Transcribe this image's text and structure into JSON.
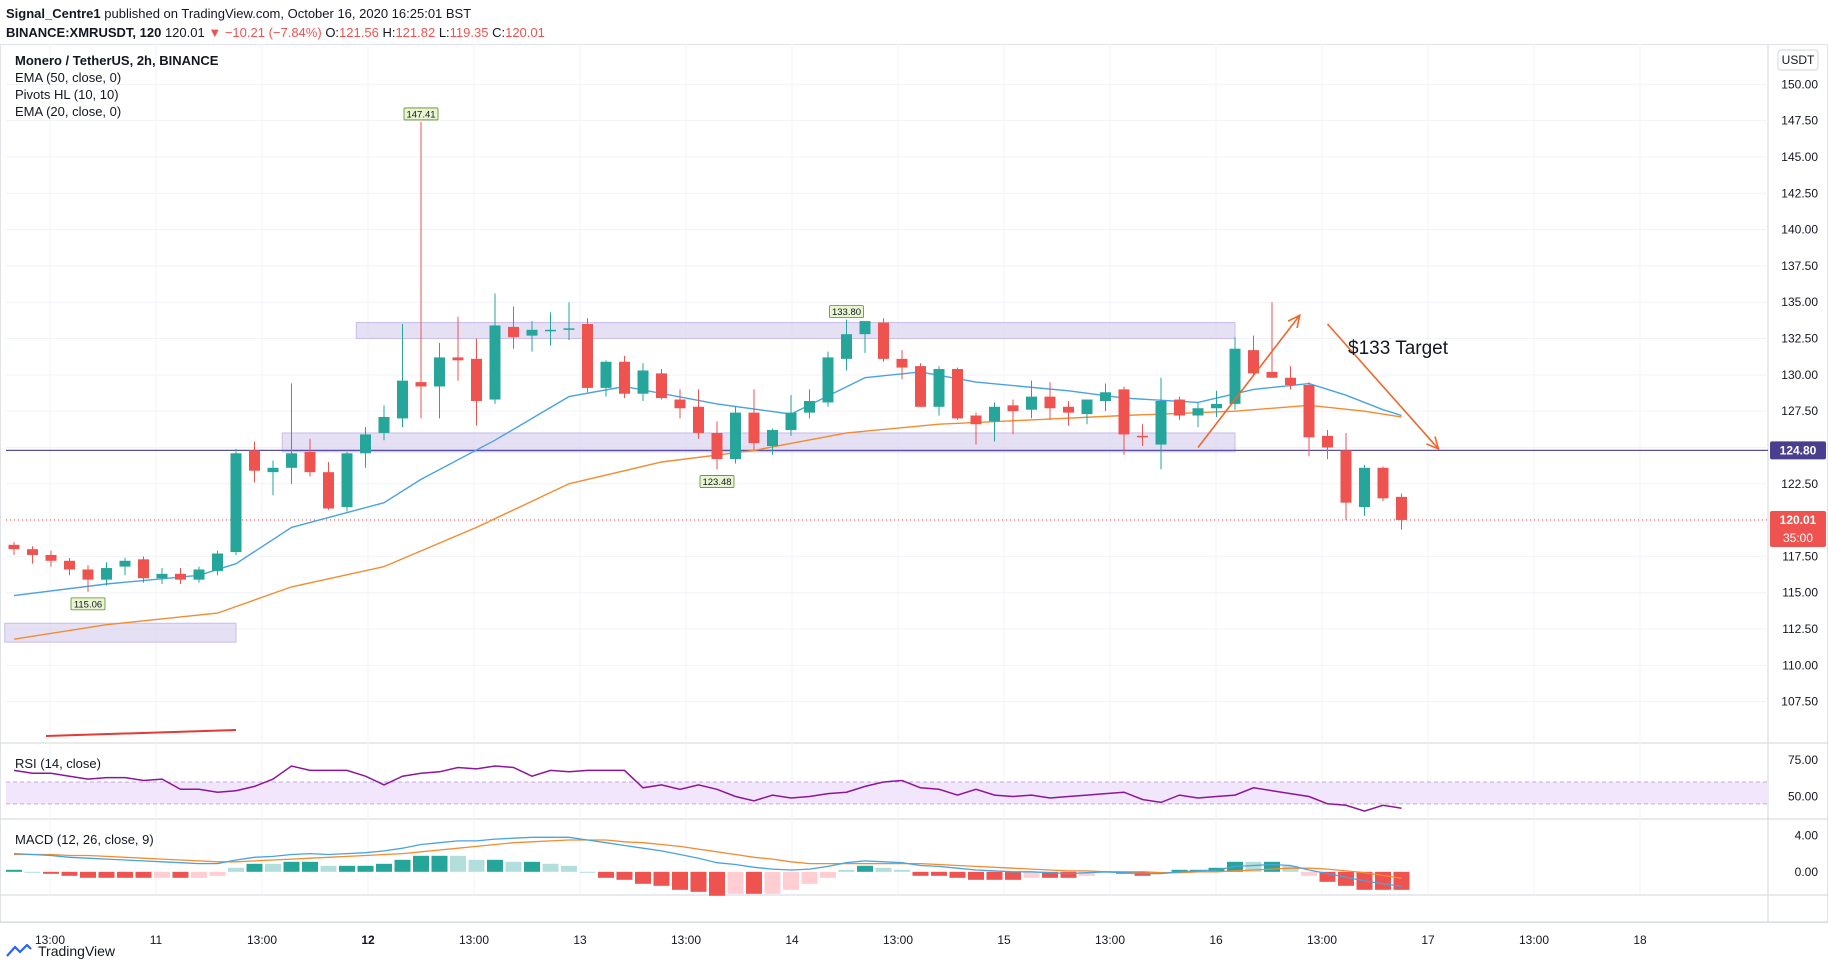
{
  "header": {
    "publisher": "Signal_Centre1",
    "published_text": "published on TradingView.com, October 16, 2020 16:25:01 BST",
    "symbol_line": "BINANCE:XMRUSDT, 120",
    "last": "120.01",
    "change": "−10.21 (−7.84%)",
    "open": "121.56",
    "high": "121.82",
    "low": "119.35",
    "close": "120.01"
  },
  "legend": {
    "title": "Monero / TetherUS, 2h, BINANCE",
    "indicators": [
      "EMA (50, close, 0)",
      "Pivots HL (10, 10)",
      "EMA (20, close, 0)"
    ]
  },
  "currency_badge": "USDT",
  "annotation": "$133 Target",
  "footer": {
    "brand": "TradingView"
  },
  "colors": {
    "up": "#26a69a",
    "down": "#ef5350",
    "ema20": "#4aa3df",
    "ema50": "#f28c30",
    "zone": "#d9d0f0",
    "rsi": "#8e1599",
    "level": "#5b4fa3"
  },
  "chart_data": {
    "type": "candlestick",
    "price_axis": {
      "min": 105,
      "max": 152.5,
      "ticks": [
        "150.00",
        "147.50",
        "145.00",
        "142.50",
        "140.00",
        "137.50",
        "135.00",
        "132.50",
        "130.00",
        "127.50",
        "125.00",
        "122.50",
        "120.00",
        "117.50",
        "115.00",
        "112.50",
        "110.00",
        "107.50"
      ]
    },
    "time_axis_labels": [
      "13:00",
      "11",
      "13:00",
      "12",
      "13:00",
      "13",
      "13:00",
      "14",
      "13:00",
      "15",
      "13:00",
      "16",
      "13:00",
      "17",
      "13:00",
      "18"
    ],
    "candles": [
      [
        118.3,
        118.5,
        117.6,
        118.0
      ],
      [
        118.0,
        118.2,
        117.0,
        117.6
      ],
      [
        117.6,
        117.9,
        116.8,
        117.2
      ],
      [
        117.2,
        117.4,
        116.2,
        116.6
      ],
      [
        116.6,
        116.9,
        115.06,
        115.9
      ],
      [
        115.9,
        117.1,
        115.5,
        116.7
      ],
      [
        116.8,
        117.4,
        116.2,
        117.2
      ],
      [
        117.3,
        117.5,
        115.7,
        116.0
      ],
      [
        116.0,
        116.7,
        115.6,
        116.3
      ],
      [
        116.3,
        116.7,
        115.6,
        115.9
      ],
      [
        115.9,
        116.8,
        115.7,
        116.6
      ],
      [
        116.5,
        117.9,
        116.2,
        117.7
      ],
      [
        117.8,
        124.9,
        117.6,
        124.6
      ],
      [
        124.8,
        125.4,
        122.6,
        123.4
      ],
      [
        123.3,
        124.1,
        121.7,
        123.6
      ],
      [
        123.6,
        129.4,
        122.5,
        124.6
      ],
      [
        124.7,
        125.6,
        123.0,
        123.3
      ],
      [
        123.3,
        124.0,
        120.7,
        120.8
      ],
      [
        120.9,
        124.7,
        120.6,
        124.6
      ],
      [
        124.6,
        126.4,
        123.6,
        125.9
      ],
      [
        126.0,
        127.9,
        125.5,
        127.1
      ],
      [
        127.0,
        133.5,
        126.4,
        129.6
      ],
      [
        129.5,
        147.41,
        127.0,
        129.2
      ],
      [
        129.2,
        132.2,
        127.0,
        131.2
      ],
      [
        131.2,
        134.0,
        129.6,
        131.0
      ],
      [
        131.1,
        132.5,
        126.5,
        128.2
      ],
      [
        128.3,
        135.6,
        128.0,
        133.4
      ],
      [
        133.3,
        134.7,
        131.8,
        132.6
      ],
      [
        132.7,
        133.7,
        131.6,
        133.1
      ],
      [
        133.1,
        134.3,
        132.0,
        133.1
      ],
      [
        133.1,
        135.0,
        132.4,
        133.2
      ],
      [
        133.5,
        133.9,
        128.8,
        129.1
      ],
      [
        129.1,
        131.0,
        128.5,
        130.9
      ],
      [
        130.9,
        131.3,
        128.4,
        128.7
      ],
      [
        128.7,
        130.8,
        128.2,
        130.3
      ],
      [
        130.1,
        130.4,
        128.3,
        128.4
      ],
      [
        128.3,
        129.0,
        127.0,
        127.7
      ],
      [
        127.8,
        129.0,
        125.6,
        126.0
      ],
      [
        126.0,
        126.8,
        123.48,
        124.2
      ],
      [
        124.2,
        127.8,
        123.9,
        127.4
      ],
      [
        127.4,
        129.0,
        124.8,
        125.3
      ],
      [
        125.1,
        126.3,
        124.5,
        126.2
      ],
      [
        126.2,
        128.6,
        125.8,
        127.4
      ],
      [
        127.4,
        129.0,
        127.0,
        128.2
      ],
      [
        128.1,
        131.6,
        127.8,
        131.2
      ],
      [
        131.1,
        133.8,
        130.3,
        132.8
      ],
      [
        132.8,
        133.6,
        131.5,
        133.7
      ],
      [
        133.6,
        133.9,
        130.9,
        131.1
      ],
      [
        131.1,
        131.7,
        129.7,
        130.5
      ],
      [
        130.6,
        130.8,
        127.8,
        127.8
      ],
      [
        127.8,
        130.6,
        127.2,
        130.4
      ],
      [
        130.4,
        130.5,
        126.9,
        127.0
      ],
      [
        127.2,
        127.4,
        125.2,
        126.6
      ],
      [
        126.8,
        128.1,
        125.4,
        127.8
      ],
      [
        127.9,
        128.3,
        125.9,
        127.5
      ],
      [
        127.6,
        129.6,
        127.0,
        128.5
      ],
      [
        128.5,
        129.5,
        126.9,
        127.7
      ],
      [
        127.8,
        128.2,
        126.5,
        127.4
      ],
      [
        127.3,
        128.3,
        126.6,
        128.3
      ],
      [
        128.2,
        129.4,
        127.5,
        128.8
      ],
      [
        129.0,
        129.2,
        124.5,
        125.9
      ],
      [
        125.8,
        126.6,
        125.1,
        125.7
      ],
      [
        125.2,
        129.8,
        123.5,
        128.2
      ],
      [
        128.3,
        128.5,
        126.9,
        127.2
      ],
      [
        127.2,
        128.1,
        126.4,
        127.7
      ],
      [
        127.7,
        128.9,
        127.1,
        128.0
      ],
      [
        128.0,
        132.6,
        127.6,
        131.8
      ],
      [
        131.7,
        132.7,
        130.0,
        130.1
      ],
      [
        130.2,
        135.0,
        129.8,
        129.8
      ],
      [
        129.8,
        130.6,
        129.0,
        129.3
      ],
      [
        129.3,
        129.5,
        124.4,
        125.7
      ],
      [
        125.8,
        126.2,
        124.2,
        125.0
      ],
      [
        124.8,
        126.0,
        120.0,
        121.2
      ],
      [
        120.9,
        123.8,
        120.3,
        123.6
      ],
      [
        123.6,
        123.7,
        121.3,
        121.5
      ],
      [
        121.6,
        121.82,
        119.35,
        120.01
      ]
    ],
    "ema20": [
      [
        0,
        114.8
      ],
      [
        5,
        115.6
      ],
      [
        10,
        116.2
      ],
      [
        12,
        117.0
      ],
      [
        15,
        119.5
      ],
      [
        20,
        121.2
      ],
      [
        22,
        122.8
      ],
      [
        26,
        125.5
      ],
      [
        30,
        128.5
      ],
      [
        33,
        129.2
      ],
      [
        38,
        128.0
      ],
      [
        42,
        127.3
      ],
      [
        46,
        129.8
      ],
      [
        49,
        130.2
      ],
      [
        52,
        129.5
      ],
      [
        57,
        128.9
      ],
      [
        60,
        128.4
      ],
      [
        64,
        128.1
      ],
      [
        67,
        129.0
      ],
      [
        70,
        129.4
      ],
      [
        72,
        128.6
      ],
      [
        74,
        127.6
      ],
      [
        75,
        127.2
      ]
    ],
    "ema50": [
      [
        0,
        111.8
      ],
      [
        5,
        112.8
      ],
      [
        11,
        113.6
      ],
      [
        15,
        115.4
      ],
      [
        20,
        116.8
      ],
      [
        25,
        119.5
      ],
      [
        30,
        122.5
      ],
      [
        35,
        124.0
      ],
      [
        40,
        124.8
      ],
      [
        45,
        126.0
      ],
      [
        50,
        126.6
      ],
      [
        55,
        126.9
      ],
      [
        60,
        127.2
      ],
      [
        66,
        127.5
      ],
      [
        70,
        127.9
      ],
      [
        73,
        127.5
      ],
      [
        75,
        127.1
      ]
    ],
    "zones": [
      {
        "from": 18.5,
        "to": 66,
        "low": 132.5,
        "high": 133.6
      },
      {
        "from": 14.5,
        "to": 66,
        "low": 124.7,
        "high": 126.0
      },
      {
        "from": -0.5,
        "to": 12,
        "low": 111.6,
        "high": 112.9
      }
    ],
    "pivot_labels": [
      {
        "bar": 22,
        "value": "147.41",
        "type": "high"
      },
      {
        "bar": 45,
        "value": "133.80",
        "type": "high"
      },
      {
        "bar": 38,
        "value": "123.48",
        "type": "low"
      },
      {
        "bar": 4,
        "value": "115.06",
        "type": "low"
      }
    ],
    "levels": [
      {
        "value": 124.8,
        "label": "124.80"
      }
    ],
    "last_price": {
      "value": 120.01,
      "label": "120.01",
      "countdown": "35:00"
    },
    "arrows": [
      {
        "from": [
          64,
          125.0
        ],
        "to": [
          69.5,
          134.1
        ]
      },
      {
        "from": [
          71,
          133.5
        ],
        "to": [
          77,
          124.9
        ]
      }
    ],
    "rsi": {
      "label": "RSI (14, close)",
      "band": [
        45,
        60
      ],
      "ticks": [
        "75.00",
        "50.00"
      ],
      "values": [
        68,
        66,
        66,
        64,
        62,
        63,
        63,
        61,
        62,
        55,
        55,
        53,
        54,
        57,
        62,
        71,
        68,
        68,
        68,
        64,
        58,
        64,
        66,
        67,
        70,
        69,
        71,
        70,
        64,
        68,
        67,
        68,
        68,
        68,
        56,
        58,
        55,
        58,
        55,
        50,
        47,
        51,
        49,
        50,
        52,
        53,
        57,
        60,
        61,
        56,
        55,
        51,
        55,
        51,
        50,
        51,
        49,
        50,
        51,
        52,
        53,
        48,
        46,
        51,
        49,
        50,
        51,
        56,
        54,
        52,
        50,
        45,
        44,
        40,
        44,
        42
      ]
    },
    "macd": {
      "label": "MACD (12, 26, close, 9)",
      "ticks": [
        "4.00",
        "0.00"
      ],
      "macd": [
        2.0,
        1.9,
        1.8,
        1.6,
        1.5,
        1.4,
        1.3,
        1.2,
        1.1,
        1.0,
        0.9,
        0.9,
        1.3,
        1.6,
        1.7,
        1.9,
        2.0,
        1.9,
        2.0,
        2.1,
        2.3,
        2.6,
        3.0,
        3.2,
        3.4,
        3.4,
        3.6,
        3.7,
        3.8,
        3.8,
        3.8,
        3.5,
        3.2,
        2.9,
        2.6,
        2.3,
        1.9,
        1.5,
        1.0,
        0.8,
        0.5,
        0.3,
        0.2,
        0.3,
        0.6,
        1.0,
        1.2,
        1.1,
        1.0,
        0.7,
        0.6,
        0.4,
        0.2,
        0.1,
        0.0,
        0.0,
        -0.1,
        -0.2,
        -0.1,
        0.0,
        -0.1,
        -0.2,
        -0.2,
        0.0,
        0.1,
        0.2,
        0.6,
        0.7,
        0.8,
        0.7,
        0.2,
        -0.2,
        -0.6,
        -1.0,
        -1.3,
        -1.6
      ],
      "signal": [
        1.9,
        1.9,
        1.9,
        1.8,
        1.8,
        1.7,
        1.6,
        1.5,
        1.4,
        1.3,
        1.2,
        1.1,
        1.1,
        1.2,
        1.3,
        1.4,
        1.5,
        1.6,
        1.7,
        1.8,
        1.9,
        2.0,
        2.2,
        2.4,
        2.6,
        2.8,
        3.0,
        3.2,
        3.3,
        3.4,
        3.5,
        3.5,
        3.5,
        3.3,
        3.2,
        3.0,
        2.8,
        2.5,
        2.2,
        1.9,
        1.6,
        1.4,
        1.1,
        0.9,
        0.9,
        0.9,
        0.9,
        0.9,
        0.9,
        0.9,
        0.8,
        0.7,
        0.6,
        0.5,
        0.4,
        0.3,
        0.2,
        0.1,
        0.1,
        0.0,
        0.0,
        0.0,
        -0.1,
        -0.1,
        0.0,
        0.0,
        0.1,
        0.2,
        0.3,
        0.4,
        0.4,
        0.3,
        0.1,
        -0.1,
        -0.4,
        -0.7
      ]
    }
  }
}
